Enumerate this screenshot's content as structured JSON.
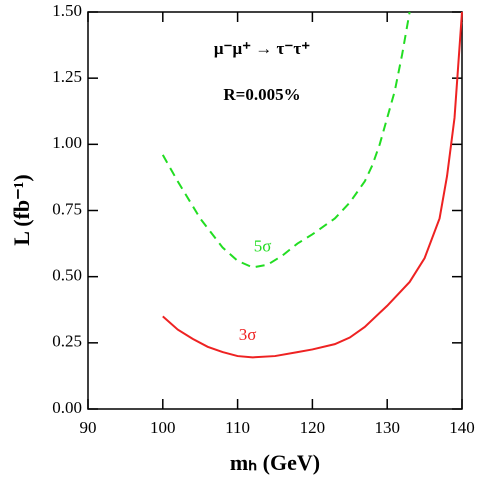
{
  "chart_data": {
    "type": "line",
    "annotations": [
      "μ⁻μ⁺ → τ⁻τ⁺",
      "R=0.005%"
    ],
    "x_label": "mₕ (GeV)",
    "y_label": "L (fb⁻¹)",
    "xlim": [
      90,
      140
    ],
    "ylim": [
      0,
      1.5
    ],
    "xticks": [
      90,
      100,
      110,
      120,
      130,
      140
    ],
    "yticks": [
      {
        "value": 0,
        "label": "0.00"
      },
      {
        "value": 0.25,
        "label": "0.25"
      },
      {
        "value": 0.5,
        "label": "0.50"
      },
      {
        "value": 0.75,
        "label": "0.75"
      },
      {
        "value": 1,
        "label": "1.00"
      },
      {
        "value": 1.25,
        "label": "1.25"
      },
      {
        "value": 1.5,
        "label": "1.50"
      }
    ],
    "series": [
      {
        "name": "5σ",
        "color": "#22dd22",
        "dashed": true,
        "x": [
          100,
          102,
          105,
          108,
          110,
          112,
          114,
          116,
          118,
          120,
          123,
          125,
          127,
          128,
          129,
          130,
          131,
          132,
          133
        ],
        "values": [
          0.96,
          0.86,
          0.72,
          0.61,
          0.56,
          0.535,
          0.545,
          0.58,
          0.625,
          0.66,
          0.72,
          0.78,
          0.86,
          0.92,
          1.0,
          1.1,
          1.2,
          1.34,
          1.5
        ]
      },
      {
        "name": "3σ",
        "color": "#ee2222",
        "dashed": false,
        "x": [
          100,
          102,
          104,
          106,
          108,
          110,
          112,
          115,
          118,
          120,
          123,
          125,
          127,
          130,
          133,
          135,
          137,
          138,
          139,
          140
        ],
        "values": [
          0.35,
          0.3,
          0.265,
          0.235,
          0.215,
          0.2,
          0.195,
          0.2,
          0.215,
          0.225,
          0.245,
          0.27,
          0.31,
          0.39,
          0.48,
          0.57,
          0.72,
          0.88,
          1.1,
          1.5
        ]
      }
    ]
  }
}
